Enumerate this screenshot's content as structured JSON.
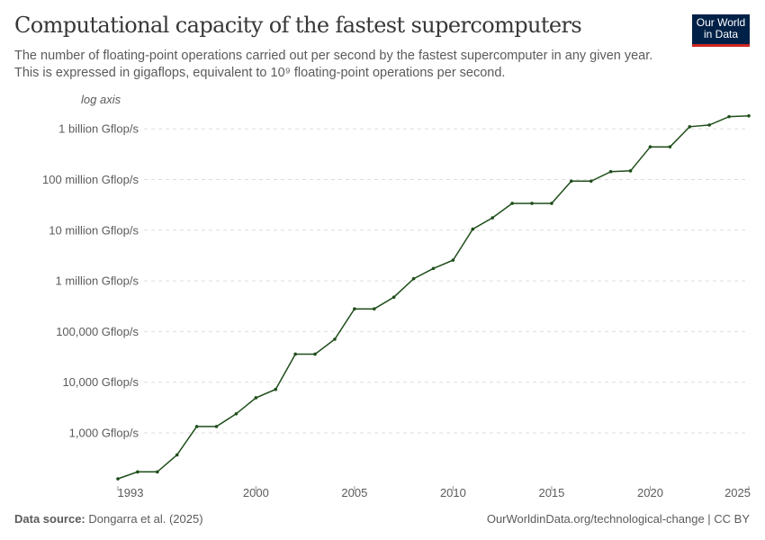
{
  "header": {
    "title": "Computational capacity of the fastest supercomputers",
    "subtitle_line1": "The number of floating-point operations carried out per second by the fastest supercomputer in any given year.",
    "subtitle_line2": "This is expressed in gigaflops, equivalent to 10⁹ floating-point operations per second.",
    "logo_line1": "Our World",
    "logo_line2": "in Data"
  },
  "footer": {
    "source_label": "Data source:",
    "source": "Dongarra et al. (2025)",
    "url": "OurWorldinData.org/technological-change | CC BY"
  },
  "colors": {
    "line": "#1f4e1a",
    "grid": "#dddddd",
    "logo_bg": "#002147",
    "logo_accent": "#ce261e"
  },
  "chart_data": {
    "type": "line",
    "title": "Computational capacity of the fastest supercomputers",
    "y_scale": "log",
    "y_scale_label": "log axis",
    "ylim": [
      100,
      2000000000
    ],
    "xlim": [
      1993,
      2025
    ],
    "grid": "horizontal dashed",
    "y_ticks": [
      {
        "value": 1000,
        "label": "1,000 Gflop/s"
      },
      {
        "value": 10000,
        "label": "10,000 Gflop/s"
      },
      {
        "value": 100000,
        "label": "100,000 Gflop/s"
      },
      {
        "value": 1000000,
        "label": "1 million Gflop/s"
      },
      {
        "value": 10000000,
        "label": "10 million Gflop/s"
      },
      {
        "value": 100000000,
        "label": "100 million Gflop/s"
      },
      {
        "value": 1000000000,
        "label": "1 billion Gflop/s"
      }
    ],
    "x_ticks": [
      {
        "value": 1993,
        "label": "1993"
      },
      {
        "value": 2000,
        "label": "2000"
      },
      {
        "value": 2005,
        "label": "2005"
      },
      {
        "value": 2010,
        "label": "2010"
      },
      {
        "value": 2015,
        "label": "2015"
      },
      {
        "value": 2020,
        "label": "2020"
      },
      {
        "value": 2025,
        "label": "2025"
      }
    ],
    "x": [
      1993,
      1994,
      1995,
      1996,
      1997,
      1998,
      1999,
      2000,
      2001,
      2002,
      2003,
      2004,
      2005,
      2006,
      2007,
      2008,
      2009,
      2010,
      2011,
      2012,
      2013,
      2014,
      2015,
      2016,
      2017,
      2018,
      2019,
      2020,
      2021,
      2022,
      2023,
      2024,
      2025
    ],
    "y": [
      124,
      170,
      170,
      368,
      1338,
      1338,
      2379,
      4938,
      7226,
      35860,
      35860,
      70720,
      280600,
      280600,
      478200,
      1105000,
      1759000,
      2566000,
      10510000,
      17590000,
      33860000,
      33860000,
      33860000,
      93010000,
      93010000,
      143500000,
      148600000,
      442000000,
      442000000,
      1102000000,
      1194000000,
      1742000000,
      1809000000
    ]
  }
}
